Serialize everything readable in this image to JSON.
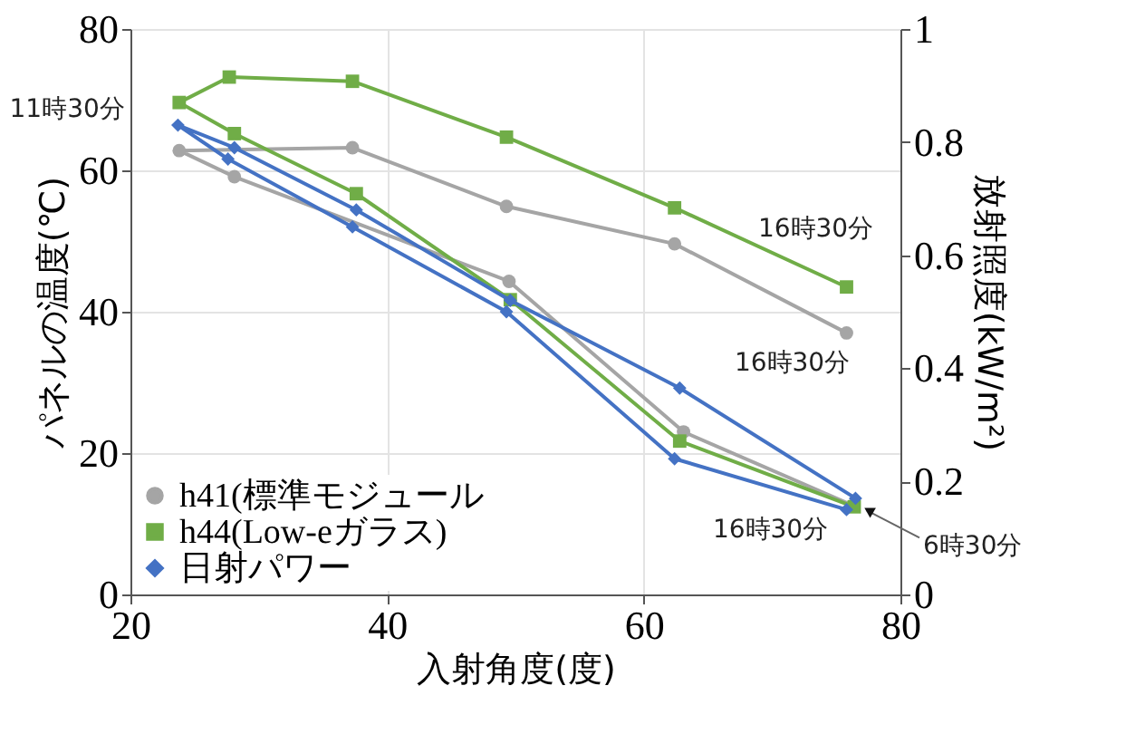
{
  "chart_data": {
    "type": "line",
    "xlabel": "入射角度(度)",
    "ylabel": "パネルの温度(℃)",
    "y2label": "放射照度(kW/m²)",
    "xlim": [
      20,
      80
    ],
    "xticks": [
      20,
      40,
      60,
      80
    ],
    "ylim": [
      0,
      80
    ],
    "yticks": [
      0,
      20,
      40,
      60,
      80
    ],
    "y2lim": [
      0,
      1
    ],
    "y2ticks": [
      0,
      0.2,
      0.4,
      0.6,
      0.8,
      1
    ],
    "grid": true,
    "legend": "bottom left",
    "series": [
      {
        "name": "h41(標準モジュール",
        "color": "#a5a5a5",
        "marker": "circle",
        "x": [
          76.3,
          63.1,
          49.5,
          28.1,
          23.8,
          37.3,
          49.3,
          62.4,
          75.8
        ],
        "values": [
          12.6,
          23.0,
          44.3,
          59.1,
          62.8,
          63.2,
          54.9,
          49.6,
          37.0
        ]
      },
      {
        "name": "h44(Low-eガラス)",
        "color": "#70ad47",
        "marker": "square",
        "x": [
          76.4,
          62.8,
          49.6,
          37.6,
          28.1,
          23.8,
          27.7,
          37.3,
          49.3,
          62.4,
          75.8
        ],
        "values": [
          12.4,
          21.7,
          41.7,
          56.7,
          65.2,
          69.6,
          73.2,
          72.6,
          64.7,
          54.7,
          43.5
        ]
      },
      {
        "name": "日射パワー",
        "color": "#4472c4",
        "marker": "diamond",
        "axis": "y2",
        "x": [
          76.5,
          62.8,
          49.6,
          37.6,
          28.1,
          23.7,
          27.6,
          37.3,
          49.3,
          62.4,
          75.8
        ],
        "values": [
          0.17,
          0.365,
          0.52,
          0.68,
          0.79,
          0.83,
          0.77,
          0.65,
          0.5,
          0.24,
          0.15
        ]
      }
    ],
    "annotations": [
      {
        "text": "11時30分",
        "x": 23.8,
        "y": 69.6
      },
      {
        "text": "16時30分",
        "x": 75.8,
        "y": 43.5
      },
      {
        "text": "16時30分",
        "x": 75.8,
        "y": 37.0
      },
      {
        "text": "16時30分",
        "x": 75.8,
        "y": 12.2
      },
      {
        "text": "6時30分",
        "x": 76.4,
        "y": 12.4
      }
    ]
  }
}
